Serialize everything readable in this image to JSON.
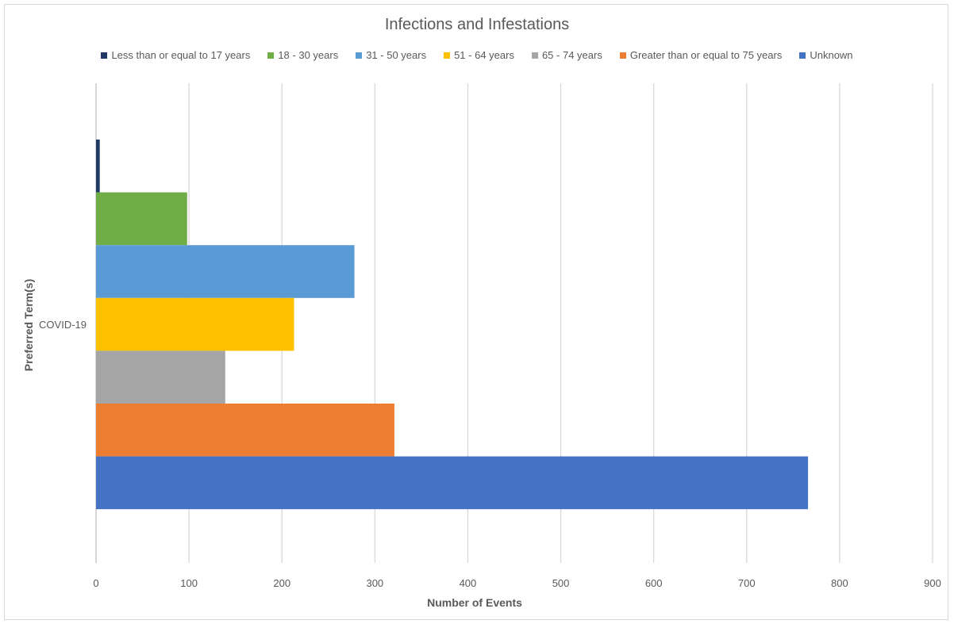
{
  "chart_data": {
    "type": "bar",
    "orientation": "horizontal",
    "title": "Infections and Infestations",
    "xlabel": "Number of Events",
    "ylabel": "Preferred Term(s)",
    "categories": [
      "COVID-19"
    ],
    "xlim": [
      0,
      900
    ],
    "x_ticks": [
      "0",
      "100",
      "200",
      "300",
      "400",
      "500",
      "600",
      "700",
      "800",
      "900"
    ],
    "grid": "vertical",
    "legend_placement": "top",
    "series": [
      {
        "name": "Less than or equal to 17 years",
        "color": "#203864",
        "values": [
          4
        ]
      },
      {
        "name": "18 - 30 years",
        "color": "#70ad47",
        "values": [
          98
        ]
      },
      {
        "name": "31 - 50 years",
        "color": "#5b9bd5",
        "values": [
          278
        ]
      },
      {
        "name": "51 - 64 years",
        "color": "#ffc000",
        "values": [
          213
        ]
      },
      {
        "name": "65 - 74 years",
        "color": "#a5a5a5",
        "values": [
          139
        ]
      },
      {
        "name": "Greater than or equal to 75 years",
        "color": "#ed7d31",
        "values": [
          321
        ]
      },
      {
        "name": "Unknown",
        "color": "#4472c4",
        "values": [
          766
        ]
      }
    ]
  }
}
